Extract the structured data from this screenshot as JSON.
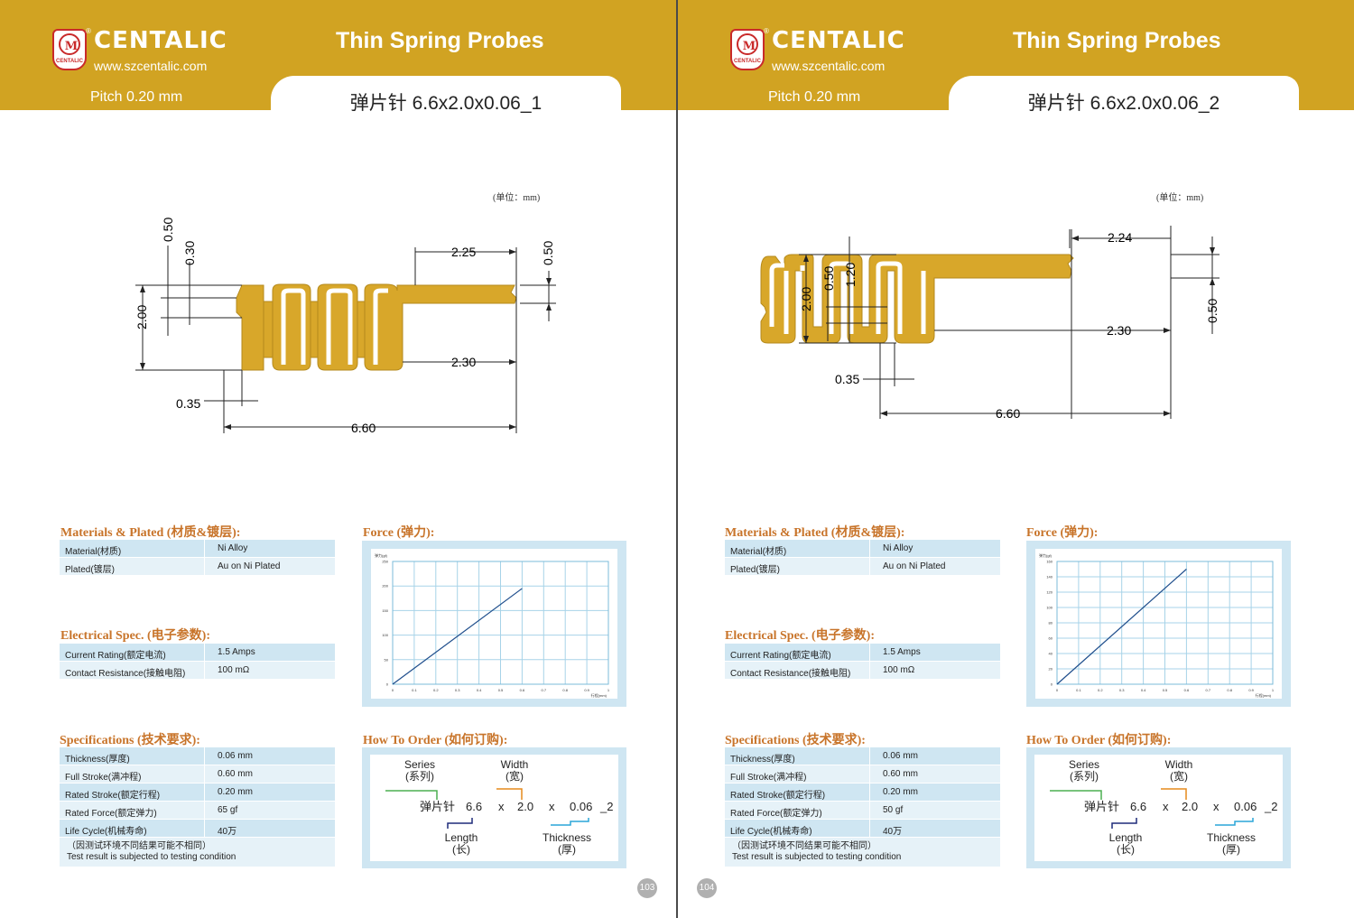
{
  "brand": {
    "name": "CENTALIC",
    "url": "www.szcentalic.com",
    "logo_text": "CENTALIC",
    "registered_mark": "®"
  },
  "colors": {
    "header_gold": "#d1a322",
    "section_orange": "#c8742a",
    "table_blue": "#cfe6f2",
    "table_light": "#e6f2f8",
    "chart_line": "#1f4e8c"
  },
  "pages": [
    {
      "title": "Thin Spring Probes",
      "pitch": "Pitch 0.20 mm",
      "model": "弹片针 6.6x2.0x0.06_1",
      "unit": "(单位：mm)",
      "dims": {
        "d050a": "0.50",
        "d030": "0.30",
        "d200": "2.00",
        "d225": "2.25",
        "d050b": "0.50",
        "d230": "2.30",
        "d035": "0.35",
        "d660": "6.60"
      },
      "materials_title": "Materials & Plated (材质&镀层):",
      "materials": [
        {
          "k": "Material(材质)",
          "v": "Ni Alloy"
        },
        {
          "k": "Plated(镀层)",
          "v": "Au on Ni Plated"
        }
      ],
      "electrical_title": "Electrical Spec. (电子参数):",
      "electrical": [
        {
          "k": "Current Rating(额定电流)",
          "v": "1.5  Amps"
        },
        {
          "k": "Contact Resistance(接触电阻)",
          "v": "100 mΩ"
        }
      ],
      "spec_title": "Specifications (技术要求):",
      "specs": [
        {
          "k": "Thickness(厚度)",
          "v": "0.06 mm"
        },
        {
          "k": "Full Stroke(满冲程)",
          "v": "0.60 mm"
        },
        {
          "k": "Rated Stroke(额定行程)",
          "v": "0.20 mm"
        },
        {
          "k": "Rated Force(额定弹力)",
          "v": "65 gf"
        },
        {
          "k": "Life Cycle(机械寿命)",
          "v": "40万"
        }
      ],
      "note_cn": "（因测试环境不同结果可能不相同）",
      "note_en": "Test result is subjected to testing condition",
      "force_title": "Force (弹力):",
      "order_title": "How To Order (如何订购):",
      "order": {
        "series": "Series",
        "series_cn": "(系列)",
        "width": "Width",
        "width_cn": "(宽)",
        "name": "弹片针",
        "len": "6.6",
        "x1": "x",
        "wid": "2.0",
        "x2": "x",
        "thk": "0.06",
        "suf": "_2",
        "length": "Length",
        "length_cn": "(长)",
        "thickness": "Thickness",
        "thickness_cn": "(厚)"
      },
      "page_number": "103",
      "chart_data": {
        "type": "line",
        "ylabel": "弹力(gf)",
        "xlabel": "行程(mm)",
        "x_ticks": [
          "0",
          "0.1",
          "0.2",
          "0.3",
          "0.4",
          "0.5",
          "0.6",
          "0.7",
          "0.8",
          "0.9",
          "1"
        ],
        "y_ticks": [
          "0",
          "50",
          "100",
          "150",
          "200",
          "250"
        ],
        "xlim": [
          0,
          1
        ],
        "ylim": [
          0,
          250
        ],
        "series": [
          {
            "x": [
              0,
              0.6
            ],
            "y": [
              0,
              195
            ]
          }
        ]
      }
    },
    {
      "title": "Thin Spring Probes",
      "pitch": "Pitch 0.20 mm",
      "model": "弹片针 6.6x2.0x0.06_2",
      "unit": "(单位：mm)",
      "dims": {
        "d224": "2.24",
        "d050a": "0.50",
        "d120": "1.20",
        "d200": "2.00",
        "d050b": "0.50",
        "d230": "2.30",
        "d035": "0.35",
        "d660": "6.60"
      },
      "materials_title": "Materials & Plated (材质&镀层):",
      "materials": [
        {
          "k": "Material(材质)",
          "v": "Ni Alloy"
        },
        {
          "k": "Plated(镀层)",
          "v": "Au on Ni Plated"
        }
      ],
      "electrical_title": "Electrical Spec. (电子参数):",
      "electrical": [
        {
          "k": "Current Rating(额定电流)",
          "v": "1.5  Amps"
        },
        {
          "k": "Contact Resistance(接触电阻)",
          "v": "100 mΩ"
        }
      ],
      "spec_title": "Specifications (技术要求):",
      "specs": [
        {
          "k": "Thickness(厚度)",
          "v": "0.06 mm"
        },
        {
          "k": "Full Stroke(满冲程)",
          "v": "0.60 mm"
        },
        {
          "k": "Rated Stroke(额定行程)",
          "v": "0.20 mm"
        },
        {
          "k": "Rated Force(额定弹力)",
          "v": "50 gf"
        },
        {
          "k": "Life Cycle(机械寿命)",
          "v": "40万"
        }
      ],
      "note_cn": "（因测试环境不同结果可能不相同）",
      "note_en": "Test result is subjected to testing condition",
      "force_title": "Force (弹力):",
      "order_title": "How To Order (如何订购):",
      "order": {
        "series": "Series",
        "series_cn": "(系列)",
        "width": "Width",
        "width_cn": "(宽)",
        "name": "弹片针",
        "len": "6.6",
        "x1": "x",
        "wid": "2.0",
        "x2": "x",
        "thk": "0.06",
        "suf": "_2",
        "length": "Length",
        "length_cn": "(长)",
        "thickness": "Thickness",
        "thickness_cn": "(厚)"
      },
      "page_number": "104",
      "chart_data": {
        "type": "line",
        "ylabel": "弹力(gf)",
        "xlabel": "行程(mm)",
        "x_ticks": [
          "0",
          "0.1",
          "0.2",
          "0.3",
          "0.4",
          "0.5",
          "0.6",
          "0.7",
          "0.8",
          "0.9",
          "1"
        ],
        "y_ticks": [
          "0",
          "20",
          "40",
          "60",
          "80",
          "100",
          "120",
          "140",
          "160"
        ],
        "xlim": [
          0,
          1
        ],
        "ylim": [
          0,
          160
        ],
        "series": [
          {
            "x": [
              0,
              0.6
            ],
            "y": [
              0,
              150
            ]
          }
        ]
      }
    }
  ]
}
